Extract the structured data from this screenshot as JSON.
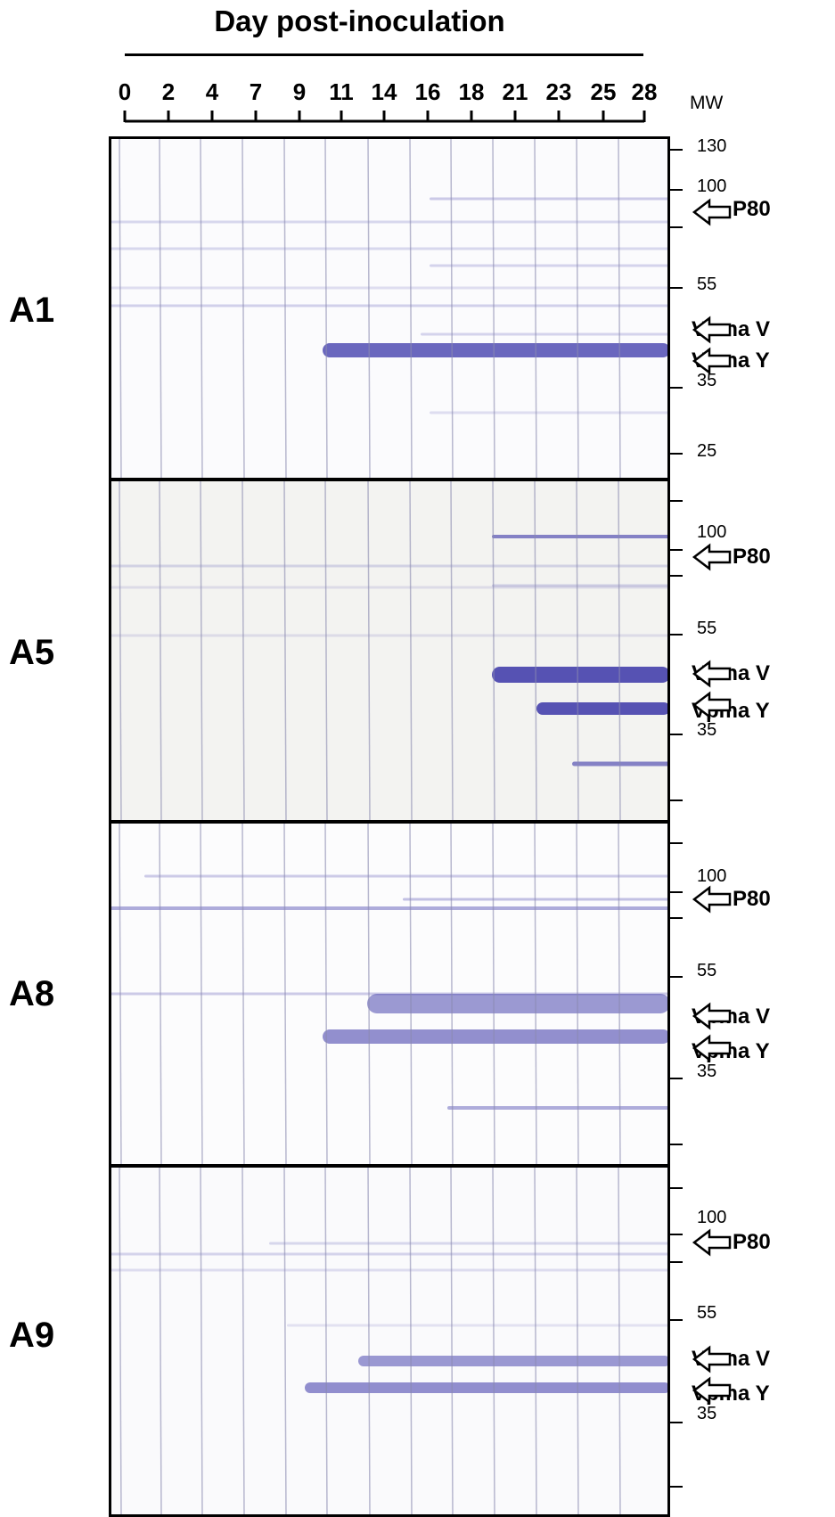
{
  "figure": {
    "title": "Day post-inoculation",
    "days": [
      "0",
      "2",
      "4",
      "7",
      "9",
      "11",
      "14",
      "16",
      "18",
      "21",
      "23",
      "25",
      "28"
    ],
    "mw_header": "MW"
  },
  "panels": [
    {
      "name": "A1",
      "mw_labels": [
        "130",
        "100",
        "55",
        "35",
        "25"
      ],
      "annotations": [
        "P80",
        "Vpma V",
        "Vpma Y"
      ]
    },
    {
      "name": "A5",
      "mw_labels": [
        "100",
        "55",
        "35"
      ],
      "annotations": [
        "P80",
        "Vpma V",
        "Vpma Y"
      ]
    },
    {
      "name": "A8",
      "mw_labels": [
        "100",
        "55",
        "35"
      ],
      "annotations": [
        "P80",
        "Vpma V",
        "Vpma Y"
      ]
    },
    {
      "name": "A9",
      "mw_labels": [
        "100",
        "55",
        "35"
      ],
      "annotations": [
        "P80",
        "Vpma V",
        "Vpma Y"
      ]
    }
  ],
  "colors": {
    "band": "#3a35a8",
    "panel_bg": "#fbfbfd",
    "panel_bg_tinted": "#f1f1ee"
  }
}
